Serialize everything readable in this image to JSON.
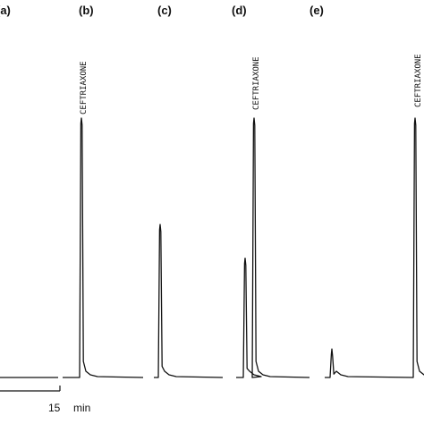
{
  "chart_data": {
    "type": "line",
    "title": "",
    "xlabel": "",
    "ylabel": "",
    "grid": false,
    "legend": "none",
    "scale_bar": {
      "value": 15,
      "unit": "min",
      "label_value": "15",
      "label_unit": "min"
    },
    "panels": [
      {
        "label": "(a)",
        "peaks": []
      },
      {
        "label": "(b)",
        "peaks": [
          {
            "name": "CEFTRIAXONE",
            "label": "CEFTRIAXONE",
            "height": 1.0,
            "labeled": true
          }
        ]
      },
      {
        "label": "(c)",
        "peaks": [
          {
            "name": "early peak",
            "label": "",
            "height": 0.59,
            "labeled": false
          }
        ]
      },
      {
        "label": "(d)",
        "peaks": [
          {
            "name": "early peak",
            "label": "",
            "height": 0.46,
            "labeled": false
          },
          {
            "name": "CEFTRIAXONE",
            "label": "CEFTRIAXONE",
            "height": 1.0,
            "labeled": true
          }
        ]
      },
      {
        "label": "(e)",
        "peaks": [
          {
            "name": "early peak",
            "label": "",
            "height": 0.11,
            "labeled": false
          },
          {
            "name": "CEFTRIAXONE",
            "label": "CEFTRIAXONE",
            "height": 1.0,
            "labeled": true
          }
        ]
      }
    ]
  }
}
